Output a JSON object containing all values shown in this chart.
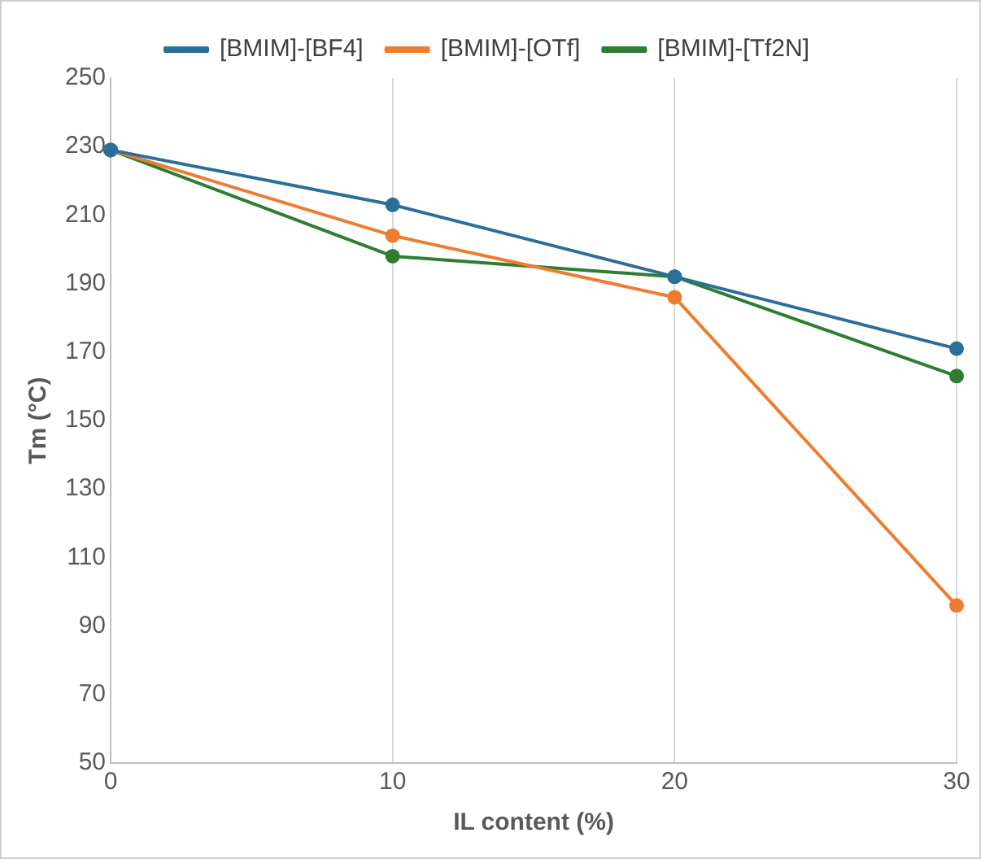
{
  "chart_data": {
    "type": "line",
    "xlabel": "IL content (%)",
    "ylabel": "Tm (°C)",
    "x": [
      0,
      10,
      20,
      30
    ],
    "series": [
      {
        "name": "[BMIM]-[BF4]",
        "color": "#2a6e9a",
        "values": [
          229,
          213,
          192,
          171
        ]
      },
      {
        "name": "[BMIM]-[OTf]",
        "color": "#ed7d31",
        "values": [
          229,
          204,
          186,
          96
        ]
      },
      {
        "name": "[BMIM]-[Tf2N]",
        "color": "#2e7d32",
        "values": [
          229,
          198,
          192,
          163
        ]
      }
    ],
    "xlim": [
      0,
      30
    ],
    "xticks": [
      0,
      10,
      20,
      30
    ],
    "ylim": [
      50,
      250
    ],
    "yticks": [
      50,
      70,
      90,
      110,
      130,
      150,
      170,
      190,
      210,
      230,
      250
    ],
    "grid": "x",
    "legend": "top",
    "marker": "circle",
    "line_style": "solid"
  }
}
